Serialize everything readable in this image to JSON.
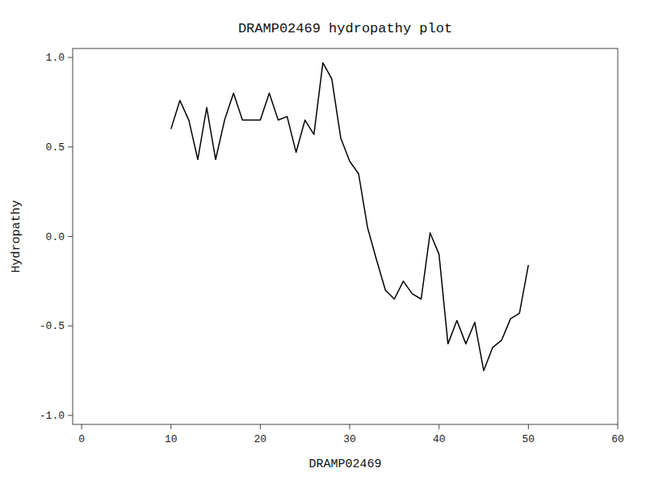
{
  "chart_data": {
    "type": "line",
    "title": "DRAMP02469 hydropathy plot",
    "xlabel": "DRAMP02469",
    "ylabel": "Hydropathy",
    "xlim": [
      -1,
      60
    ],
    "ylim": [
      -1.05,
      1.05
    ],
    "xticks": [
      0,
      10,
      20,
      30,
      40,
      50,
      60
    ],
    "yticks": [
      {
        "value": -1.0,
        "label": "-1.0"
      },
      -0.5,
      {
        "value": 0.0,
        "label": "0.0"
      },
      0.5,
      {
        "value": 1.0,
        "label": "1.0"
      }
    ],
    "x": [
      10,
      11,
      12,
      13,
      14,
      15,
      16,
      17,
      18,
      19,
      20,
      21,
      22,
      23,
      24,
      25,
      26,
      27,
      28,
      29,
      30,
      31,
      32,
      33,
      34,
      35,
      36,
      37,
      38,
      39,
      40,
      41,
      42,
      43,
      44,
      45,
      46,
      47,
      48,
      49,
      50
    ],
    "values": [
      0.6,
      0.76,
      0.65,
      0.43,
      0.72,
      0.43,
      0.65,
      0.8,
      0.65,
      0.65,
      0.65,
      0.8,
      0.65,
      0.67,
      0.47,
      0.65,
      0.57,
      0.97,
      0.88,
      0.55,
      0.42,
      0.35,
      0.05,
      -0.13,
      -0.3,
      -0.35,
      -0.25,
      -0.32,
      -0.35,
      0.02,
      -0.1,
      -0.6,
      -0.47,
      -0.6,
      -0.48,
      -0.75,
      -0.62,
      -0.58,
      -0.46,
      -0.43,
      -0.16
    ],
    "color": "#000000",
    "grid": false
  }
}
